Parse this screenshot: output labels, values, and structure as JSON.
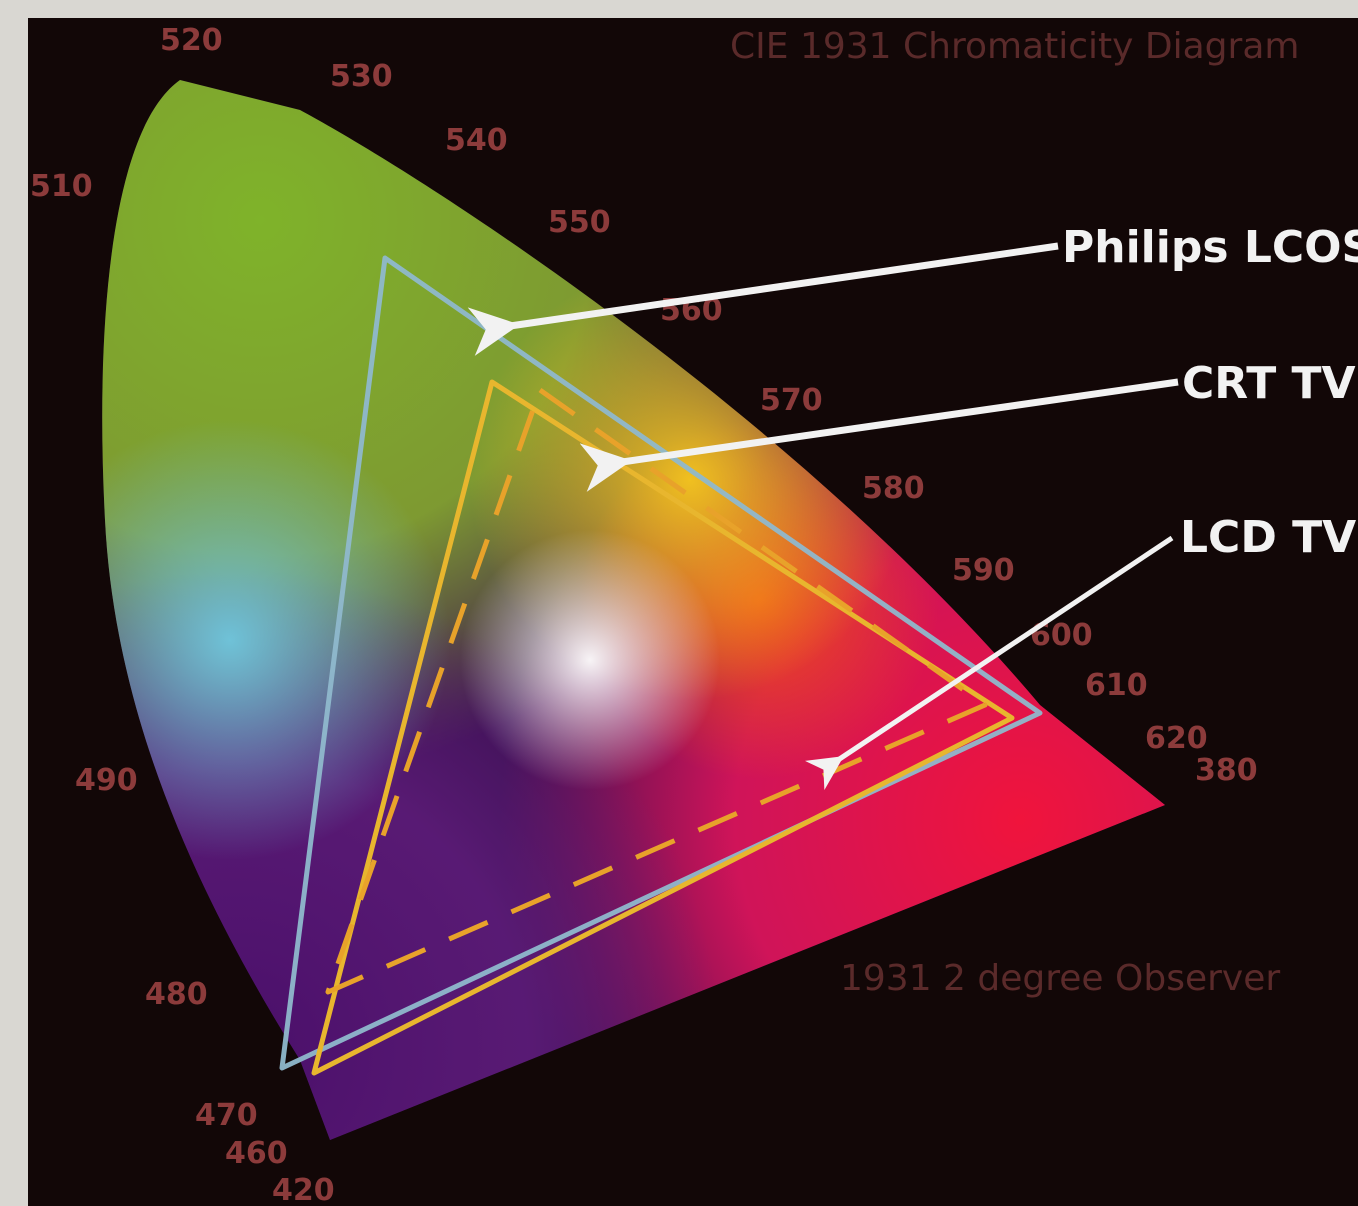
{
  "diagram": {
    "title": "CIE 1931 Chromaticity Diagram",
    "footnote": "1931 2 degree Observer",
    "wavelength_labels": [
      "520",
      "530",
      "540",
      "550",
      "560",
      "570",
      "580",
      "590",
      "600",
      "610",
      "620",
      "380",
      "510",
      "490",
      "480",
      "470",
      "460",
      "420"
    ],
    "callouts": [
      {
        "label": "Philips LCOS"
      },
      {
        "label": "CRT TV"
      },
      {
        "label": "LCD TV"
      }
    ],
    "colors": {
      "background": "#120707",
      "lcos_outline": "#8fb8cc",
      "crt_outline": "#e8b62e",
      "lcd_outline": "#e8a22a",
      "callout_text": "#f2f2f2",
      "arrow": "#f2f2f2"
    }
  }
}
